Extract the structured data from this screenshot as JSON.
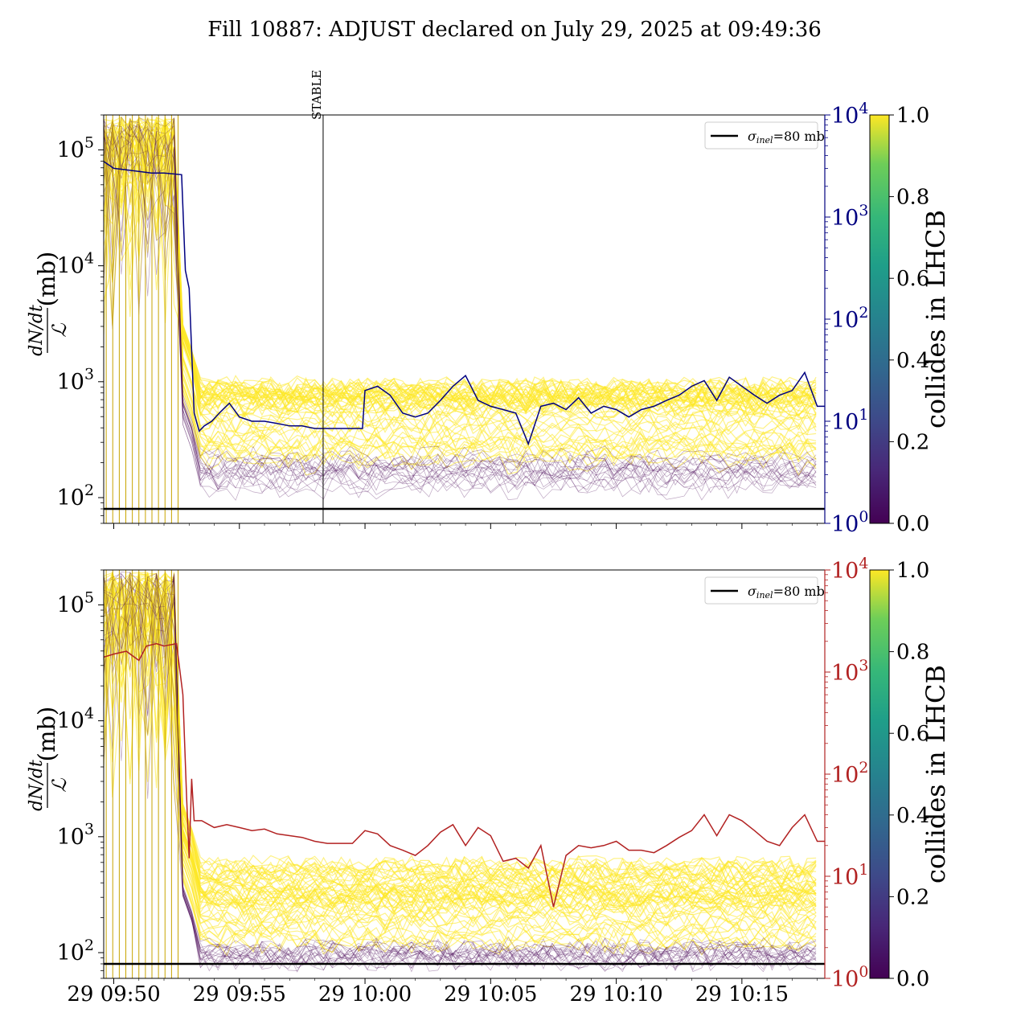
{
  "title": "Fill 10887: ADJUST declared on July 29, 2025 at 09:49:36",
  "colors": {
    "yellow": "#fde725",
    "purple": "#440154",
    "blue_line": "#000080",
    "red_line": "#b22222",
    "sigma_line": "#000000"
  },
  "colorbar": {
    "label": "collides in LHCB",
    "ticks": [
      "0.0",
      "0.2",
      "0.4",
      "0.6",
      "0.8",
      "1.0"
    ]
  },
  "chart_data": [
    {
      "type": "line",
      "panel": "top",
      "ylabel": "dN/dt over L (mb)",
      "ylabel_num": "dN/dt",
      "ylabel_den": "ℒ",
      "ylabel_unit": "(mb)",
      "ylim": [
        60,
        200000
      ],
      "yscale": "log",
      "y_ticks": [
        {
          "base": "10",
          "exp": "2"
        },
        {
          "base": "10",
          "exp": "3"
        },
        {
          "base": "10",
          "exp": "4"
        },
        {
          "base": "10",
          "exp": "5"
        }
      ],
      "y2lim": [
        1,
        10000
      ],
      "y2scale": "log",
      "y2_ticks": [
        {
          "base": "10",
          "exp": "0"
        },
        {
          "base": "10",
          "exp": "1"
        },
        {
          "base": "10",
          "exp": "2"
        },
        {
          "base": "10",
          "exp": "3"
        },
        {
          "base": "10",
          "exp": "4"
        }
      ],
      "y2_color": "#000080",
      "legend": {
        "label_sym": "σ",
        "label_sub": "inel",
        "label_rest": "=80 mb",
        "placement": "upper right"
      },
      "sigma_inel_mb": 80,
      "vline": {
        "label": "STABLE",
        "time": "2025-07-29 09:58:20"
      },
      "x_ticks": [
        "29 09:50",
        "29 09:55",
        "29 10:00",
        "29 10:05",
        "29 10:10",
        "29 10:15"
      ],
      "xlim_minutes": [
        -0.4,
        28.3
      ],
      "line_series": {
        "axis": "right",
        "minutes": [
          -0.4,
          0.0,
          0.5,
          1.0,
          1.5,
          2.0,
          2.7,
          2.85,
          3.0,
          3.2,
          3.4,
          3.6,
          3.9,
          4.2,
          4.6,
          5.0,
          5.5,
          6.0,
          6.5,
          7.0,
          7.5,
          8.0,
          8.5,
          9.0,
          9.5,
          9.9,
          10.0,
          10.5,
          11.0,
          11.5,
          12.0,
          12.5,
          13.0,
          13.5,
          14.0,
          14.5,
          15.0,
          15.5,
          16.0,
          16.5,
          17.0,
          17.5,
          18.0,
          18.5,
          19.0,
          19.5,
          20.0,
          20.5,
          21.0,
          21.5,
          22.0,
          22.5,
          23.0,
          23.5,
          24.0,
          24.5,
          25.0,
          25.5,
          26.0,
          26.5,
          27.0,
          27.5,
          28.0,
          28.3
        ],
        "values": [
          3500,
          3000,
          2900,
          2800,
          2700,
          2700,
          2600,
          300,
          200,
          12,
          8,
          9,
          10,
          12,
          15,
          11,
          10,
          10,
          9.5,
          9,
          9,
          8.5,
          8.5,
          8.5,
          8.5,
          8.5,
          20,
          22,
          18,
          12,
          11,
          12,
          16,
          22,
          28,
          16,
          14,
          13,
          12,
          6,
          14,
          15,
          13,
          17,
          12,
          14,
          13,
          11,
          13,
          14,
          16,
          18,
          22,
          25,
          16,
          27,
          22,
          18,
          15,
          18,
          20,
          30,
          14,
          14
        ]
      }
    },
    {
      "type": "line",
      "panel": "bottom",
      "ylabel": "dN/dt over L (mb)",
      "ylabel_num": "dN/dt",
      "ylabel_den": "ℒ",
      "ylabel_unit": "(mb)",
      "ylim": [
        60,
        200000
      ],
      "yscale": "log",
      "y_ticks": [
        {
          "base": "10",
          "exp": "2"
        },
        {
          "base": "10",
          "exp": "3"
        },
        {
          "base": "10",
          "exp": "4"
        },
        {
          "base": "10",
          "exp": "5"
        }
      ],
      "y2lim": [
        1,
        10000
      ],
      "y2scale": "log",
      "y2_ticks": [
        {
          "base": "10",
          "exp": "0"
        },
        {
          "base": "10",
          "exp": "1"
        },
        {
          "base": "10",
          "exp": "2"
        },
        {
          "base": "10",
          "exp": "3"
        },
        {
          "base": "10",
          "exp": "4"
        }
      ],
      "y2_color": "#b22222",
      "legend": {
        "label_sym": "σ",
        "label_sub": "inel",
        "label_rest": "=80 mb",
        "placement": "upper right"
      },
      "sigma_inel_mb": 80,
      "x_ticks": [
        "29 09:50",
        "29 09:55",
        "29 10:00",
        "29 10:05",
        "29 10:10",
        "29 10:15"
      ],
      "xlim_minutes": [
        -0.4,
        28.3
      ],
      "line_series": {
        "axis": "right",
        "minutes": [
          -0.4,
          0.0,
          0.5,
          1.0,
          1.3,
          1.7,
          2.0,
          2.5,
          2.75,
          2.9,
          3.0,
          3.1,
          3.2,
          3.5,
          4.0,
          4.5,
          5.0,
          5.5,
          6.0,
          6.5,
          7.0,
          7.5,
          8.0,
          8.5,
          9.0,
          9.5,
          10.0,
          10.5,
          11.0,
          11.5,
          12.0,
          12.5,
          13.0,
          13.5,
          14.0,
          14.5,
          15.0,
          15.5,
          16.0,
          16.5,
          17.0,
          17.5,
          18.0,
          18.5,
          19.0,
          19.5,
          20.0,
          20.5,
          21.0,
          21.5,
          22.0,
          22.5,
          23.0,
          23.5,
          24.0,
          24.5,
          25.0,
          25.5,
          26.0,
          26.5,
          27.0,
          27.5,
          28.0,
          28.3
        ],
        "values": [
          1400,
          1500,
          1600,
          1300,
          1800,
          1900,
          1800,
          1900,
          600,
          60,
          15,
          90,
          35,
          35,
          30,
          32,
          30,
          28,
          29,
          26,
          25,
          24,
          22,
          21,
          21,
          21,
          28,
          26,
          20,
          18,
          16,
          20,
          27,
          32,
          20,
          30,
          25,
          14,
          15,
          12,
          20,
          5,
          16,
          20,
          19,
          20,
          22,
          18,
          18,
          17,
          20,
          24,
          28,
          40,
          25,
          40,
          35,
          28,
          22,
          20,
          30,
          40,
          22,
          22
        ]
      }
    }
  ]
}
